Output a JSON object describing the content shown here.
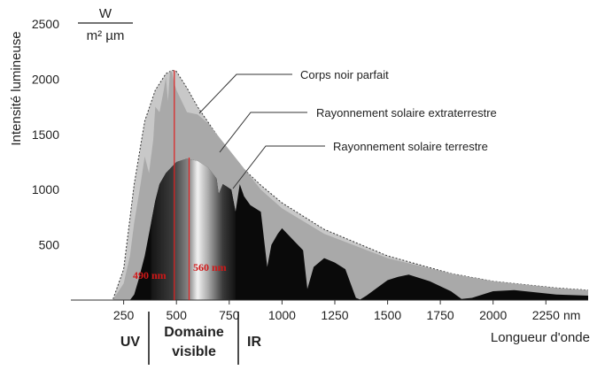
{
  "chart_data": {
    "type": "area",
    "ylabel": "Intensité lumineuse",
    "xlabel": "Longueur d'onde",
    "y_unit_num": "W",
    "y_unit_den": "m² µm",
    "x_unit": "nm",
    "xlim": [
      0,
      2450
    ],
    "ylim": [
      0,
      2500
    ],
    "x_ticks": [
      250,
      500,
      750,
      1000,
      1250,
      1500,
      1750,
      2000,
      2250
    ],
    "y_ticks": [
      500,
      1000,
      1500,
      2000,
      2500
    ],
    "series": [
      {
        "name": "Corps noir parfait",
        "x": [
          200,
          250,
          300,
          350,
          400,
          450,
          480,
          500,
          550,
          600,
          700,
          800,
          900,
          1000,
          1200,
          1500,
          1800,
          2000,
          2300,
          2450
        ],
        "y": [
          10,
          280,
          1050,
          1620,
          1900,
          2050,
          2080,
          2070,
          1920,
          1750,
          1470,
          1220,
          1040,
          880,
          640,
          400,
          240,
          170,
          110,
          90
        ]
      },
      {
        "name": "Rayonnement solaire extraterrestre",
        "x": [
          200,
          250,
          280,
          300,
          330,
          350,
          370,
          390,
          400,
          420,
          440,
          450,
          460,
          470,
          480,
          490,
          500,
          520,
          550,
          600,
          650,
          700,
          750,
          800,
          900,
          1000,
          1200,
          1500,
          1800,
          2000,
          2300,
          2450
        ],
        "y": [
          5,
          150,
          400,
          700,
          1050,
          1300,
          1150,
          1450,
          1750,
          1700,
          1900,
          2020,
          1800,
          2080,
          2060,
          1960,
          1900,
          1820,
          1700,
          1680,
          1600,
          1480,
          1360,
          1240,
          1000,
          830,
          600,
          380,
          240,
          170,
          110,
          90
        ]
      },
      {
        "name": "Rayonnement solaire terrestre",
        "x": [
          280,
          300,
          320,
          350,
          380,
          400,
          420,
          450,
          500,
          550,
          600,
          650,
          690,
          700,
          720,
          760,
          780,
          800,
          820,
          850,
          900,
          930,
          950,
          980,
          1000,
          1050,
          1100,
          1120,
          1150,
          1200,
          1250,
          1300,
          1350,
          1370,
          1400,
          1450,
          1500,
          1550,
          1600,
          1700,
          1800,
          1850,
          1900,
          2000,
          2100,
          2200,
          2300,
          2450
        ],
        "y": [
          0,
          50,
          180,
          400,
          700,
          900,
          1050,
          1150,
          1250,
          1280,
          1260,
          1200,
          1100,
          960,
          1050,
          1000,
          800,
          1050,
          940,
          860,
          800,
          300,
          500,
          600,
          650,
          550,
          450,
          100,
          300,
          380,
          340,
          280,
          20,
          5,
          40,
          110,
          180,
          210,
          230,
          170,
          80,
          10,
          20,
          80,
          90,
          70,
          50,
          40
        ]
      }
    ],
    "annotations": [
      {
        "text": "490 nm",
        "x": 490
      },
      {
        "text": "560 nm",
        "x": 560
      }
    ],
    "bands": [
      {
        "text": "UV",
        "from": 0,
        "to": 380
      },
      {
        "text": "Domaine visible",
        "line1": "Domaine",
        "line2": "visible",
        "from": 380,
        "to": 780
      },
      {
        "text": "IR",
        "from": 780,
        "to": 2450
      }
    ],
    "legend_placement": "labels with leader lines, top-right",
    "grid": false
  },
  "colors": {
    "blackbody_fill": "#c8c8c8",
    "extraterrestrial_fill": "#a9a9a9",
    "terrestrial_fill": "#0a0a0a",
    "marker_line": "#e02020",
    "marker_text": "#d01818"
  }
}
